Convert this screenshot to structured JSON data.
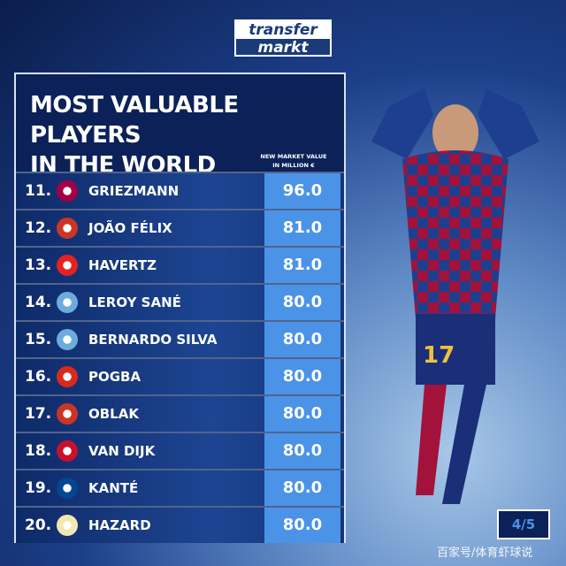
{
  "logo": {
    "line1": "transfer",
    "line2": "markt"
  },
  "title": {
    "line1": "MOST VALUABLE PLAYERS",
    "line2": "IN THE WORLD"
  },
  "value_header": {
    "line1": "NEW MARKET VALUE",
    "line2": "IN MILLION €"
  },
  "players": [
    {
      "rank": "11.",
      "name": "GRIEZMANN",
      "value": "96.0",
      "club_icon": "barcelona-crest",
      "color": "#a50044"
    },
    {
      "rank": "12.",
      "name": "JOÃO FÉLIX",
      "value": "81.0",
      "club_icon": "atletico-madrid-crest",
      "color": "#cb3524"
    },
    {
      "rank": "13.",
      "name": "HAVERTZ",
      "value": "81.0",
      "club_icon": "leverkusen-crest",
      "color": "#e32221"
    },
    {
      "rank": "14.",
      "name": "LEROY SANÉ",
      "value": "80.0",
      "club_icon": "manchester-city-crest",
      "color": "#6cabdd"
    },
    {
      "rank": "15.",
      "name": "BERNARDO SILVA",
      "value": "80.0",
      "club_icon": "manchester-city-crest",
      "color": "#6cabdd"
    },
    {
      "rank": "16.",
      "name": "POGBA",
      "value": "80.0",
      "club_icon": "manchester-united-crest",
      "color": "#da291c"
    },
    {
      "rank": "17.",
      "name": "OBLAK",
      "value": "80.0",
      "club_icon": "atletico-madrid-crest",
      "color": "#cb3524"
    },
    {
      "rank": "18.",
      "name": "VAN DIJK",
      "value": "80.0",
      "club_icon": "liverpool-crest",
      "color": "#c8102e"
    },
    {
      "rank": "19.",
      "name": "KANTÉ",
      "value": "80.0",
      "club_icon": "chelsea-crest",
      "color": "#034694"
    },
    {
      "rank": "20.",
      "name": "HAZARD",
      "value": "80.0",
      "club_icon": "real-madrid-crest",
      "color": "#f4e6b0"
    }
  ],
  "page_indicator": "4/5",
  "watermark": "百家号/体育虾球说",
  "colors": {
    "panel": "#0b2157",
    "value_box": "#4b93e6"
  }
}
